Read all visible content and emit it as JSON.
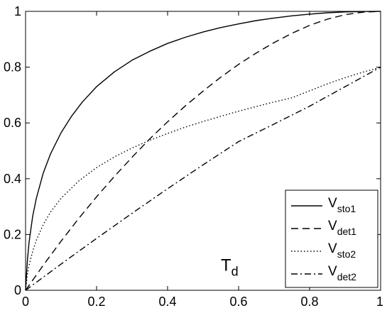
{
  "chart_data": {
    "type": "line",
    "title": "",
    "xlabel": "",
    "ylabel": "",
    "xlim": [
      0,
      1
    ],
    "ylim": [
      0,
      1
    ],
    "grid": false,
    "legend_position": "bottom-right",
    "x_ticks": [
      "0",
      "0.2",
      "0.4",
      "0.6",
      "0.8",
      "1"
    ],
    "y_ticks": [
      "0",
      "0.2",
      "0.4",
      "0.6",
      "0.8",
      "1"
    ],
    "x_tick_values": [
      0,
      0.2,
      0.4,
      0.6,
      0.8,
      1
    ],
    "y_tick_values": [
      0,
      0.2,
      0.4,
      0.6,
      0.8,
      1
    ],
    "annotation": {
      "main": "T",
      "sub": "d",
      "x": 0.55,
      "y": 0.07
    },
    "series": [
      {
        "name": "V_sto1",
        "label_main": "V",
        "label_sub": "sto1",
        "style": "solid",
        "x": [
          0,
          0.005,
          0.01,
          0.02,
          0.03,
          0.05,
          0.07,
          0.1,
          0.13,
          0.16,
          0.2,
          0.25,
          0.3,
          0.35,
          0.4,
          0.45,
          0.5,
          0.55,
          0.6,
          0.65,
          0.7,
          0.75,
          0.8,
          0.85,
          0.9,
          0.95,
          1
        ],
        "y": [
          0,
          0.105,
          0.174,
          0.265,
          0.328,
          0.421,
          0.488,
          0.565,
          0.625,
          0.675,
          0.73,
          0.783,
          0.825,
          0.857,
          0.885,
          0.907,
          0.926,
          0.942,
          0.955,
          0.967,
          0.976,
          0.984,
          0.99,
          0.995,
          0.998,
          0.9995,
          1
        ]
      },
      {
        "name": "V_det1",
        "label_main": "V",
        "label_sub": "det1",
        "style": "dashed",
        "x": [
          0,
          0.05,
          0.1,
          0.15,
          0.2,
          0.25,
          0.3,
          0.35,
          0.4,
          0.45,
          0.5,
          0.55,
          0.6,
          0.65,
          0.7,
          0.75,
          0.8,
          0.85,
          0.9,
          0.95,
          1
        ],
        "y": [
          0,
          0.09,
          0.176,
          0.258,
          0.335,
          0.408,
          0.477,
          0.543,
          0.604,
          0.661,
          0.714,
          0.764,
          0.81,
          0.851,
          0.888,
          0.921,
          0.95,
          0.972,
          0.988,
          0.997,
          1
        ]
      },
      {
        "name": "V_sto2",
        "label_main": "V",
        "label_sub": "sto2",
        "style": "dotted",
        "x": [
          0,
          0.005,
          0.01,
          0.02,
          0.03,
          0.05,
          0.07,
          0.1,
          0.15,
          0.2,
          0.25,
          0.3,
          0.35,
          0.4,
          0.45,
          0.5,
          0.55,
          0.6,
          0.65,
          0.7,
          0.75,
          0.8,
          0.85,
          0.9,
          0.95,
          1
        ],
        "y": [
          0,
          0.055,
          0.09,
          0.14,
          0.178,
          0.236,
          0.28,
          0.33,
          0.392,
          0.44,
          0.478,
          0.51,
          0.538,
          0.562,
          0.585,
          0.605,
          0.624,
          0.642,
          0.659,
          0.675,
          0.69,
          0.715,
          0.74,
          0.762,
          0.782,
          0.8
        ]
      },
      {
        "name": "V_det2",
        "label_main": "V",
        "label_sub": "det2",
        "style": "dashdot",
        "x": [
          0,
          0.1,
          0.2,
          0.3,
          0.4,
          0.5,
          0.6,
          0.7,
          0.8,
          0.9,
          1
        ],
        "y": [
          0,
          0.094,
          0.186,
          0.276,
          0.364,
          0.45,
          0.533,
          0.596,
          0.66,
          0.73,
          0.8
        ]
      }
    ]
  }
}
